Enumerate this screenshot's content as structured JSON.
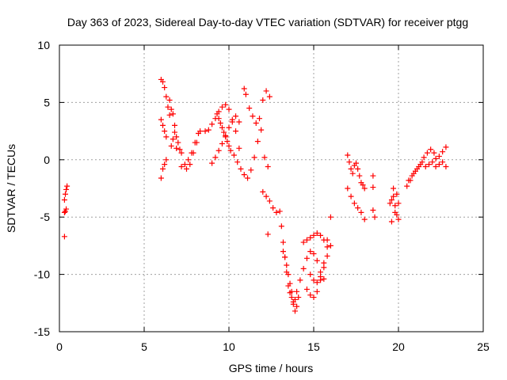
{
  "chart_data": {
    "type": "scatter",
    "title": "Day 363 of 2023, Sidereal Day-to-day VTEC variation (SDTVAR) for receiver ptgg",
    "xlabel": "GPS time / hours",
    "ylabel": "SDTVAR / TECUs",
    "xlim": [
      0,
      25
    ],
    "ylim": [
      -15,
      10
    ],
    "xticks": [
      "0",
      "5",
      "10",
      "15",
      "20",
      "25"
    ],
    "yticks": [
      "-15",
      "-10",
      "-5",
      "0",
      "5",
      "10"
    ],
    "grid": true,
    "marker": "+",
    "color": "#ff0000",
    "x": [
      0.3,
      0.35,
      0.4,
      0.45,
      0.35,
      0.3,
      0.4,
      0.3,
      6.0,
      6.1,
      6.2,
      6.3,
      6.4,
      6.5,
      6.0,
      6.1,
      6.2,
      6.3,
      6.0,
      6.1,
      6.2,
      6.3,
      6.5,
      6.6,
      6.7,
      6.8,
      6.9,
      7.0,
      7.1,
      7.2,
      6.6,
      6.7,
      6.8,
      6.9,
      7.2,
      7.4,
      7.6,
      7.8,
      8.0,
      8.2,
      7.5,
      7.7,
      7.9,
      8.1,
      8.3,
      8.6,
      8.8,
      9.0,
      9.2,
      9.4,
      9.6,
      9.8,
      10.0,
      10.2,
      10.4,
      10.6,
      9.0,
      9.2,
      9.4,
      9.6,
      9.8,
      10.0,
      10.2,
      10.4,
      10.6,
      9.3,
      9.4,
      9.5,
      9.6,
      9.7,
      9.8,
      9.9,
      10.0,
      10.1,
      10.3,
      10.5,
      10.7,
      10.9,
      11.1,
      11.3,
      11.5,
      11.7,
      11.9,
      12.1,
      12.3,
      10.9,
      11.0,
      11.2,
      11.4,
      11.6,
      11.8,
      12.0,
      12.2,
      12.4,
      12.0,
      12.2,
      12.4,
      12.6,
      12.8,
      12.3,
      13.0,
      13.1,
      13.2,
      13.3,
      13.4,
      13.5,
      13.6,
      13.7,
      13.8,
      13.9,
      14.0,
      13.2,
      13.3,
      13.4,
      13.5,
      13.6,
      13.7,
      13.8,
      13.9,
      14.0,
      14.1,
      14.2,
      14.4,
      14.6,
      14.8,
      15.0,
      15.2,
      15.4,
      15.6,
      14.4,
      14.6,
      14.8,
      15.0,
      15.2,
      15.4,
      15.6,
      15.8,
      14.6,
      14.8,
      15.0,
      15.2,
      15.4,
      15.6,
      15.8,
      16.0,
      14.8,
      15.0,
      15.2,
      15.4,
      15.6,
      15.8,
      16.0,
      17.0,
      17.1,
      17.2,
      17.3,
      17.4,
      17.5,
      17.6,
      17.7,
      17.8,
      17.9,
      18.0,
      17.0,
      17.2,
      17.4,
      17.6,
      17.8,
      18.0,
      18.5,
      18.5,
      18.5,
      18.6,
      19.5,
      19.6,
      19.7,
      19.8,
      19.9,
      20.0,
      19.6,
      19.8,
      20.0,
      19.7,
      19.9,
      20.5,
      20.7,
      20.9,
      21.1,
      21.3,
      21.5,
      21.7,
      21.9,
      22.1,
      20.6,
      20.8,
      21.0,
      21.2,
      21.4,
      21.6,
      21.8,
      22.0,
      22.2,
      22.4,
      22.6,
      22.8,
      22.2,
      22.4,
      22.6,
      22.8
    ],
    "y": [
      -6.7,
      -4.5,
      -4.3,
      -2.3,
      -3.0,
      -3.5,
      -2.6,
      -4.6,
      7.0,
      6.8,
      6.3,
      5.5,
      4.6,
      3.9,
      3.5,
      3.0,
      2.5,
      2.0,
      -1.6,
      -0.8,
      -0.4,
      0.0,
      5.2,
      4.4,
      4.0,
      3.0,
      2.0,
      1.5,
      0.9,
      0.6,
      1.2,
      1.8,
      2.4,
      1.0,
      -0.6,
      -0.4,
      0.0,
      0.6,
      1.5,
      2.3,
      -0.8,
      -0.4,
      0.6,
      1.5,
      2.5,
      2.5,
      2.6,
      3.1,
      3.6,
      4.2,
      4.6,
      4.8,
      4.4,
      3.5,
      2.5,
      1.0,
      -0.3,
      0.2,
      0.8,
      1.4,
      2.1,
      2.8,
      3.3,
      3.8,
      3.3,
      4.0,
      3.6,
      3.2,
      2.8,
      2.4,
      2.0,
      1.6,
      1.2,
      0.8,
      0.4,
      -0.2,
      -0.8,
      -1.3,
      -1.6,
      -0.9,
      0.2,
      1.6,
      2.6,
      0.2,
      -0.6,
      6.2,
      5.7,
      4.5,
      3.8,
      3.2,
      3.6,
      5.2,
      6.0,
      5.5,
      -2.8,
      -3.2,
      -3.6,
      -4.2,
      -4.6,
      -6.5,
      -4.5,
      -5.8,
      -7.2,
      -8.5,
      -9.8,
      -11.0,
      -11.6,
      -12.0,
      -12.4,
      -12.2,
      -11.5,
      -8.0,
      -8.5,
      -9.2,
      -10.0,
      -10.8,
      -11.5,
      -12.6,
      -13.2,
      -12.8,
      -12.0,
      -10.5,
      -9.5,
      -8.6,
      -8.0,
      -8.2,
      -8.8,
      -9.8,
      -10.4,
      -7.2,
      -7.0,
      -6.8,
      -6.6,
      -6.4,
      -6.6,
      -7.0,
      -7.6,
      -11.3,
      -11.8,
      -12.0,
      -11.5,
      -10.5,
      -9.4,
      -8.4,
      -7.5,
      -10.0,
      -10.5,
      -10.7,
      -10.2,
      -9.0,
      -7.0,
      -5.0,
      0.4,
      -0.2,
      -0.8,
      -1.2,
      -0.5,
      -0.3,
      -0.8,
      -1.4,
      -2.0,
      -2.2,
      -2.5,
      -2.5,
      -3.2,
      -3.8,
      -4.2,
      -4.6,
      -5.2,
      -1.4,
      -2.4,
      -4.4,
      -5.0,
      -3.8,
      -3.5,
      -3.2,
      -4.0,
      -4.8,
      -5.2,
      -5.4,
      -4.6,
      -3.8,
      -2.5,
      -3.0,
      -2.3,
      -1.8,
      -1.2,
      -0.8,
      -0.4,
      0.2,
      0.6,
      0.9,
      0.6,
      -1.8,
      -1.4,
      -1.0,
      -0.6,
      -0.2,
      -0.6,
      -0.4,
      -0.2,
      0.1,
      0.3,
      0.7,
      1.1,
      -0.6,
      -0.4,
      -0.2,
      -0.6
    ]
  }
}
